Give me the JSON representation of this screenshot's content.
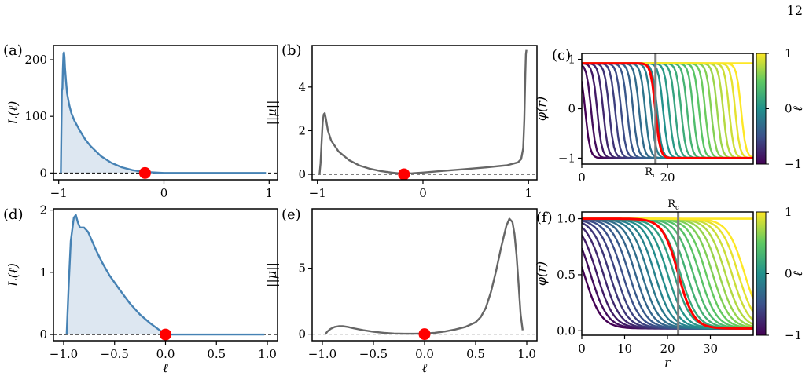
{
  "page_number": "12",
  "colors": {
    "blue_curve": "#4682b4",
    "blue_fill": "#dde7f1",
    "gray_curve": "#666666",
    "marker": "#ff0000",
    "red_profile": "#ff0000",
    "guide_line": "#7f7f7f",
    "viridis": [
      "#440154",
      "#3b528b",
      "#21918c",
      "#5ec962",
      "#fde725"
    ]
  },
  "chart_data": [
    {
      "panel": "(a)",
      "type": "area",
      "title": "",
      "xlabel": "",
      "ylabel": "L(ℓ)",
      "xlim": [
        -1.05,
        1.08
      ],
      "ylim": [
        -12,
        225
      ],
      "xticks": [
        -1,
        0,
        1
      ],
      "xtick_labels": [
        "−1",
        "0",
        "1"
      ],
      "yticks": [
        0,
        100,
        200
      ],
      "ytick_labels": [
        "0",
        "100",
        "200"
      ],
      "series": [
        {
          "x": [
            -0.98,
            -0.97,
            -0.965,
            -0.96,
            -0.955,
            -0.95,
            -0.945,
            -0.94,
            -0.93,
            -0.92,
            -0.9,
            -0.88,
            -0.85,
            -0.8,
            -0.75,
            -0.7,
            -0.6,
            -0.5,
            -0.4,
            -0.3,
            -0.2,
            0,
            0.5,
            0.97
          ],
          "y": [
            0,
            145,
            150,
            185,
            210,
            213,
            205,
            185,
            160,
            140,
            120,
            106,
            92,
            75,
            60,
            48,
            30,
            18,
            10,
            5,
            2,
            0,
            0,
            0
          ]
        }
      ],
      "baseline_y": 0,
      "marker": {
        "x": -0.18,
        "y": 0
      }
    },
    {
      "panel": "(b)",
      "type": "line",
      "title": "",
      "xlabel": "",
      "ylabel": "||μ||",
      "xlim": [
        -1.05,
        1.08
      ],
      "ylim": [
        -0.25,
        5.9
      ],
      "xticks": [
        -1,
        0,
        1
      ],
      "xtick_labels": [
        "−1",
        "0",
        "1"
      ],
      "yticks": [
        0,
        2,
        4
      ],
      "ytick_labels": [
        "0",
        "2",
        "4"
      ],
      "series": [
        {
          "x": [
            -0.98,
            -0.97,
            -0.96,
            -0.95,
            -0.94,
            -0.93,
            -0.92,
            -0.9,
            -0.87,
            -0.8,
            -0.7,
            -0.6,
            -0.5,
            -0.4,
            -0.3,
            -0.2,
            -0.1,
            0,
            0.2,
            0.4,
            0.6,
            0.8,
            0.9,
            0.93,
            0.95,
            0.96,
            0.97,
            0.975,
            0.98
          ],
          "y": [
            0,
            0.5,
            1.5,
            2.4,
            2.75,
            2.8,
            2.55,
            2.0,
            1.55,
            1.05,
            0.65,
            0.4,
            0.25,
            0.15,
            0.08,
            0.03,
            0.05,
            0.08,
            0.16,
            0.24,
            0.32,
            0.42,
            0.55,
            0.7,
            1.2,
            2.5,
            4.6,
            5.5,
            5.7
          ]
        }
      ],
      "baseline_y": 0,
      "marker": {
        "x": -0.18,
        "y": 0
      }
    },
    {
      "panel": "(c)",
      "type": "line",
      "title": "",
      "xlabel": "",
      "ylabel": "φ(r)",
      "xlim": [
        0,
        40
      ],
      "ylim": [
        -1.12,
        1.12
      ],
      "xticks": [
        0,
        20
      ],
      "xtick_labels": [
        "0",
        "20"
      ],
      "yticks": [
        -1,
        0,
        1
      ],
      "ytick_labels": [
        "−1",
        "0",
        "1"
      ],
      "vline": {
        "x": 17.2,
        "label": "R_c"
      },
      "family": {
        "kind": "tanh_kink",
        "low": -1,
        "high": 0.92,
        "centers": [
          0.8,
          2.2,
          3.6,
          5.0,
          6.4,
          7.8,
          9.2,
          10.6,
          12.0,
          13.4,
          14.8,
          16.2,
          17.6,
          19.0,
          20.4,
          21.8,
          23.2,
          24.6,
          26.0,
          27.4,
          28.8,
          30.2,
          31.6,
          33.0,
          34.4,
          35.8,
          37.2
        ],
        "width": 1.1,
        "ell_min": -1,
        "ell_max": 1
      },
      "highlight": {
        "center": 17.2,
        "width": 1.1,
        "color_key": "red_profile"
      },
      "colorbar": {
        "label": "ℓ",
        "ticks": [
          -1,
          0,
          1
        ],
        "tick_labels": [
          "−1",
          "0",
          "1"
        ]
      }
    },
    {
      "panel": "(d)",
      "type": "area",
      "title": "",
      "xlabel": "ℓ",
      "ylabel": "L(ℓ)",
      "xlim": [
        -1.1,
        1.1
      ],
      "ylim": [
        -0.1,
        2.02
      ],
      "xticks": [
        -1,
        -0.5,
        0,
        0.5,
        1
      ],
      "xtick_labels": [
        "−1.0",
        "−0.5",
        "0.0",
        "0.5",
        "1.0"
      ],
      "yticks": [
        0,
        1,
        2
      ],
      "ytick_labels": [
        "0",
        "1",
        "2"
      ],
      "series": [
        {
          "x": [
            -0.97,
            -0.95,
            -0.93,
            -0.9,
            -0.88,
            -0.86,
            -0.84,
            -0.82,
            -0.8,
            -0.76,
            -0.72,
            -0.68,
            -0.62,
            -0.55,
            -0.45,
            -0.35,
            -0.25,
            -0.15,
            -0.05,
            0,
            0.5,
            0.97
          ],
          "y": [
            0,
            0.8,
            1.5,
            1.88,
            1.92,
            1.8,
            1.72,
            1.72,
            1.72,
            1.65,
            1.5,
            1.35,
            1.15,
            0.95,
            0.72,
            0.5,
            0.32,
            0.18,
            0.06,
            0,
            0,
            0
          ]
        }
      ],
      "baseline_y": 0,
      "marker": {
        "x": 0.0,
        "y": 0
      }
    },
    {
      "panel": "(e)",
      "type": "line",
      "title": "",
      "xlabel": "ℓ",
      "ylabel": "||μ||",
      "xlim": [
        -1.1,
        1.1
      ],
      "ylim": [
        -0.5,
        9.5
      ],
      "xticks": [
        -1,
        -0.5,
        0,
        0.5,
        1
      ],
      "xtick_labels": [
        "−1.0",
        "−0.5",
        "0.0",
        "0.5",
        "1.0"
      ],
      "yticks": [
        0,
        5
      ],
      "ytick_labels": [
        "0",
        "5"
      ],
      "series": [
        {
          "x": [
            -0.97,
            -0.95,
            -0.92,
            -0.88,
            -0.84,
            -0.8,
            -0.75,
            -0.7,
            -0.6,
            -0.5,
            -0.4,
            -0.3,
            -0.2,
            -0.1,
            0,
            0.1,
            0.2,
            0.3,
            0.4,
            0.5,
            0.55,
            0.6,
            0.65,
            0.7,
            0.75,
            0.8,
            0.83,
            0.86,
            0.88,
            0.9,
            0.92,
            0.94,
            0.96
          ],
          "y": [
            0,
            0.2,
            0.4,
            0.55,
            0.6,
            0.6,
            0.55,
            0.45,
            0.3,
            0.18,
            0.1,
            0.05,
            0.03,
            0.03,
            0.05,
            0.1,
            0.2,
            0.35,
            0.55,
            0.9,
            1.3,
            2.0,
            3.2,
            4.8,
            6.6,
            8.2,
            8.75,
            8.5,
            7.6,
            6.0,
            3.8,
            1.5,
            0.3
          ]
        }
      ],
      "baseline_y": 0,
      "marker": {
        "x": 0.0,
        "y": 0
      }
    },
    {
      "panel": "(f)",
      "type": "line",
      "title": "",
      "xlabel": "r",
      "ylabel": "φ(r)",
      "xlim": [
        0,
        40
      ],
      "ylim": [
        -0.04,
        1.06
      ],
      "xticks": [
        0,
        10,
        20,
        30
      ],
      "xtick_labels": [
        "0",
        "10",
        "20",
        "30"
      ],
      "yticks": [
        0,
        0.5,
        1
      ],
      "ytick_labels": [
        "0.0",
        "0.5",
        "1.0"
      ],
      "vline": {
        "x": 22.5,
        "label": "R_c"
      },
      "family": {
        "kind": "sigmoid_front",
        "low": 0.02,
        "high": 1.0,
        "centers": [
          0.5,
          2.0,
          3.5,
          5.0,
          6.5,
          8.0,
          9.5,
          11.0,
          12.5,
          14.0,
          15.5,
          17.0,
          18.5,
          20.0,
          21.5,
          23.0,
          24.5,
          26.0,
          27.5,
          29.0,
          30.5,
          32.0,
          33.5,
          35.0,
          36.5,
          38.0
        ],
        "width": 2.0,
        "ell_min": -1,
        "ell_max": 1
      },
      "highlight": {
        "center": 22.5,
        "width": 1.8,
        "color_key": "red_profile"
      },
      "colorbar": {
        "label": "ℓ",
        "ticks": [
          -1,
          0,
          1
        ],
        "tick_labels": [
          "−1",
          "0",
          "1"
        ]
      }
    }
  ]
}
